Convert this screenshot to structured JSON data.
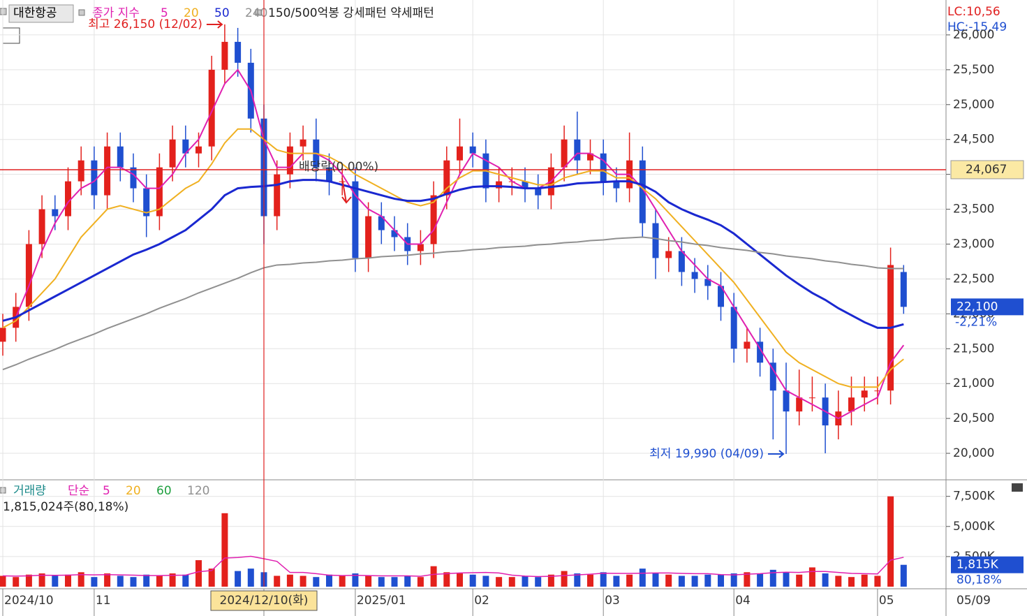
{
  "chart_data": {
    "type": "candlestick",
    "stock_name": "대한항공",
    "legend_prefix": "종가 지수",
    "pattern_label": "150/500억봉 강세패턴 약세패턴",
    "lc_label": "LC:10,56",
    "hc_label": "HC:-15,49",
    "high_annotation": "최고 26,150 (12/02)",
    "low_annotation": "최저 19,990 (04/09)",
    "dividend_annotation": "배당락(0.00%)",
    "categories": [
      "2024/10",
      null,
      null,
      null,
      null,
      null,
      null,
      "11",
      null,
      null,
      null,
      null,
      null,
      null,
      null,
      null,
      null,
      null,
      null,
      null,
      "2024/12/10(화)",
      null,
      null,
      null,
      null,
      null,
      null,
      "2025/01",
      null,
      null,
      null,
      null,
      null,
      null,
      null,
      null,
      "02",
      null,
      null,
      null,
      null,
      null,
      null,
      null,
      null,
      null,
      "03",
      null,
      null,
      null,
      null,
      null,
      null,
      null,
      null,
      null,
      "04",
      null,
      null,
      null,
      null,
      null,
      null,
      null,
      null,
      null,
      null,
      "05",
      null,
      null
    ],
    "last_date": "05/09",
    "up_color": "#e3211c",
    "down_color": "#1f4fd0",
    "open": [
      21600,
      21800,
      22100,
      23000,
      23500,
      23400,
      23900,
      24200,
      23700,
      24400,
      24100,
      23800,
      23400,
      24100,
      24500,
      24300,
      24400,
      25500,
      25900,
      25600,
      24800,
      23400,
      24000,
      24400,
      24500,
      24100,
      23900,
      23900,
      22800,
      23400,
      23200,
      23100,
      22900,
      23000,
      23700,
      24200,
      24400,
      24300,
      23800,
      23900,
      23900,
      23800,
      23700,
      24100,
      24500,
      24200,
      24300,
      23900,
      23800,
      24200,
      23300,
      22800,
      22900,
      22600,
      22500,
      22400,
      22100,
      21500,
      21600,
      21300,
      20900,
      20600,
      20800,
      20800,
      20400,
      20600,
      20800,
      20900,
      20900,
      22600
    ],
    "high": [
      22000,
      22300,
      23200,
      23700,
      23700,
      24100,
      24400,
      24400,
      24600,
      24600,
      24300,
      24000,
      24300,
      24700,
      24700,
      24600,
      25700,
      26150,
      26100,
      25800,
      25000,
      24200,
      24600,
      24700,
      24800,
      24300,
      24100,
      24100,
      23600,
      23600,
      23400,
      23300,
      23200,
      23900,
      24400,
      24800,
      24600,
      24500,
      24100,
      24100,
      24100,
      24000,
      24300,
      24700,
      24900,
      24500,
      24500,
      24100,
      24600,
      24400,
      23500,
      23100,
      23100,
      22800,
      22700,
      22600,
      22300,
      21800,
      21800,
      21500,
      21300,
      21200,
      21100,
      21000,
      20900,
      21100,
      21100,
      21100,
      22950,
      22700
    ],
    "low": [
      21400,
      21600,
      21900,
      22800,
      23200,
      23200,
      23700,
      23500,
      23500,
      23900,
      23600,
      23100,
      23200,
      23900,
      24100,
      24100,
      24200,
      25300,
      25400,
      24600,
      23000,
      23200,
      23800,
      24200,
      23900,
      23700,
      23700,
      22600,
      22600,
      23000,
      22900,
      22700,
      22700,
      22800,
      23500,
      24000,
      24100,
      23600,
      23600,
      23700,
      23600,
      23500,
      23500,
      23900,
      24000,
      24000,
      23700,
      23600,
      23600,
      23100,
      22500,
      22600,
      22400,
      22300,
      22200,
      21900,
      21300,
      21300,
      21100,
      20200,
      19990,
      20400,
      20600,
      20000,
      20200,
      20400,
      20600,
      20700,
      20700,
      22000
    ],
    "close": [
      21800,
      22100,
      23000,
      23500,
      23400,
      23900,
      24200,
      23700,
      24400,
      24100,
      23800,
      23400,
      24100,
      24500,
      24300,
      24400,
      25500,
      25900,
      25600,
      24800,
      23400,
      24000,
      24400,
      24500,
      24100,
      23900,
      23900,
      22800,
      23400,
      23200,
      23100,
      22900,
      23000,
      23700,
      24200,
      24400,
      24300,
      23800,
      23900,
      23900,
      23800,
      23700,
      24100,
      24500,
      24200,
      24300,
      23900,
      23800,
      24200,
      23300,
      22800,
      22900,
      22600,
      22500,
      22400,
      22100,
      21500,
      21600,
      21300,
      20900,
      20600,
      20800,
      20800,
      20400,
      20600,
      20800,
      20900,
      20900,
      22700,
      22100
    ],
    "last_price_label": "22,100",
    "change_label": "-2,21%",
    "high_index": 17,
    "low_index": 60,
    "marker_index": 20,
    "ref_line": {
      "value": 24067,
      "label": "24,067",
      "color": "#e02020"
    },
    "ma_lines": [
      {
        "name": "5",
        "color": "#e020b0",
        "values": [
          21900,
          21950,
          22400,
          22900,
          23300,
          23600,
          23800,
          23900,
          24100,
          24100,
          24000,
          23800,
          23800,
          24000,
          24300,
          24500,
          24900,
          25300,
          25500,
          25200,
          24500,
          24100,
          24100,
          24300,
          24300,
          24200,
          24000,
          23700,
          23500,
          23400,
          23200,
          23000,
          23000,
          23200,
          23600,
          24000,
          24300,
          24200,
          24100,
          23900,
          23800,
          23800,
          23900,
          24100,
          24300,
          24300,
          24200,
          24000,
          24000,
          23800,
          23500,
          23200,
          22900,
          22700,
          22500,
          22400,
          22100,
          21800,
          21500,
          21200,
          20900,
          20800,
          20700,
          20600,
          20500,
          20600,
          20700,
          20800,
          21300,
          21550
        ]
      },
      {
        "name": "20",
        "color": "#f0b020",
        "values": [
          21800,
          21900,
          22100,
          22300,
          22500,
          22800,
          23100,
          23300,
          23500,
          23550,
          23500,
          23450,
          23500,
          23650,
          23800,
          23900,
          24150,
          24450,
          24650,
          24650,
          24500,
          24350,
          24300,
          24300,
          24300,
          24250,
          24150,
          24000,
          23900,
          23800,
          23700,
          23600,
          23550,
          23600,
          23800,
          23950,
          24050,
          24050,
          24000,
          23950,
          23900,
          23850,
          23850,
          23950,
          24000,
          24050,
          24050,
          23950,
          23950,
          23800,
          23650,
          23450,
          23250,
          23050,
          22850,
          22650,
          22450,
          22200,
          21950,
          21700,
          21450,
          21300,
          21200,
          21100,
          21000,
          20950,
          20950,
          20950,
          21200,
          21350
        ]
      },
      {
        "name": "50",
        "color": "#1a28d0",
        "values": [
          21900,
          21950,
          22050,
          22150,
          22250,
          22350,
          22450,
          22550,
          22650,
          22750,
          22850,
          22920,
          23000,
          23100,
          23200,
          23350,
          23500,
          23700,
          23800,
          23820,
          23830,
          23850,
          23900,
          23920,
          23920,
          23900,
          23850,
          23800,
          23750,
          23700,
          23650,
          23620,
          23620,
          23650,
          23720,
          23780,
          23820,
          23830,
          23830,
          23820,
          23800,
          23800,
          23820,
          23840,
          23870,
          23880,
          23890,
          23900,
          23900,
          23850,
          23750,
          23600,
          23500,
          23420,
          23350,
          23270,
          23150,
          23000,
          22850,
          22700,
          22550,
          22420,
          22300,
          22200,
          22080,
          21980,
          21880,
          21800,
          21800,
          21850
        ]
      },
      {
        "name": "240",
        "color": "#909090",
        "values": [
          21200,
          21270,
          21350,
          21420,
          21490,
          21570,
          21640,
          21710,
          21790,
          21860,
          21930,
          22000,
          22080,
          22150,
          22220,
          22300,
          22370,
          22440,
          22510,
          22590,
          22660,
          22700,
          22710,
          22730,
          22740,
          22760,
          22770,
          22790,
          22800,
          22820,
          22830,
          22840,
          22860,
          22870,
          22890,
          22900,
          22920,
          22930,
          22950,
          22960,
          22970,
          22990,
          23000,
          23020,
          23030,
          23050,
          23060,
          23080,
          23090,
          23100,
          23080,
          23050,
          23030,
          23000,
          22980,
          22950,
          22930,
          22910,
          22880,
          22860,
          22830,
          22810,
          22790,
          22760,
          22740,
          22710,
          22690,
          22660,
          22650,
          22650
        ]
      }
    ],
    "ylim": [
      19620,
      26450
    ],
    "yticks": [
      {
        "value": 20000,
        "label": "20,000"
      },
      {
        "value": 20500,
        "label": "20,500"
      },
      {
        "value": 21000,
        "label": "21,000"
      },
      {
        "value": 21500,
        "label": "21,500"
      },
      {
        "value": 22000,
        "label": "22,000"
      },
      {
        "value": 22500,
        "label": "22,500"
      },
      {
        "value": 23000,
        "label": "23,000"
      },
      {
        "value": 23500,
        "label": "23,500"
      },
      {
        "value": 24000,
        "label": "24,000"
      },
      {
        "value": 24500,
        "label": "24,500"
      },
      {
        "value": 25000,
        "label": "25,000"
      },
      {
        "value": 25500,
        "label": "25,500"
      },
      {
        "value": 26000,
        "label": "26,000"
      }
    ],
    "volume": {
      "name": "거래량",
      "method": "단순",
      "total_label": "1,815,024주(80,18%)",
      "values": [
        900,
        800,
        1000,
        1100,
        900,
        1000,
        1200,
        800,
        1100,
        900,
        800,
        1000,
        900,
        1100,
        1000,
        2200,
        1500,
        6100,
        1300,
        1500,
        1200,
        900,
        1000,
        900,
        800,
        1000,
        900,
        1100,
        900,
        800,
        800,
        900,
        800,
        1700,
        1200,
        1100,
        1000,
        900,
        800,
        800,
        900,
        800,
        1000,
        1300,
        1100,
        1000,
        1200,
        900,
        1000,
        1500,
        1100,
        1000,
        900,
        900,
        1000,
        1000,
        1100,
        1200,
        1100,
        1400,
        1200,
        1000,
        1600,
        1100,
        900,
        800,
        1000,
        900,
        7500,
        1815
      ],
      "last_label": "1,815K",
      "ratio_label": "80,18%",
      "ylim": [
        0,
        8700
      ],
      "yticks": [
        {
          "value": 2500,
          "label": "2,500K"
        },
        {
          "value": 5000,
          "label": "5,000K"
        },
        {
          "value": 7500,
          "label": "7,500K"
        }
      ],
      "ma_lines": [
        {
          "name": "5",
          "color": "#e020b0",
          "values": [
            900,
            880,
            900,
            950,
            940,
            960,
            1000,
            980,
            1000,
            980,
            960,
            920,
            920,
            940,
            960,
            1240,
            1340,
            2380,
            2420,
            2520,
            2320,
            2100,
            1180,
            1180,
            1080,
            960,
            920,
            940,
            920,
            900,
            900,
            900,
            860,
            1020,
            1080,
            1140,
            1160,
            1180,
            1140,
            960,
            880,
            840,
            860,
            920,
            980,
            1040,
            1120,
            1100,
            1100,
            1120,
            1140,
            1140,
            1100,
            1080,
            1080,
            1000,
            980,
            1040,
            1080,
            1160,
            1200,
            1180,
            1260,
            1260,
            1180,
            1100,
            1080,
            1060,
            2200,
            2440
          ]
        },
        {
          "name": "20",
          "color": "#f0b020"
        },
        {
          "name": "60",
          "color": "#20a040"
        },
        {
          "name": "120",
          "color": "#909090"
        }
      ]
    }
  }
}
